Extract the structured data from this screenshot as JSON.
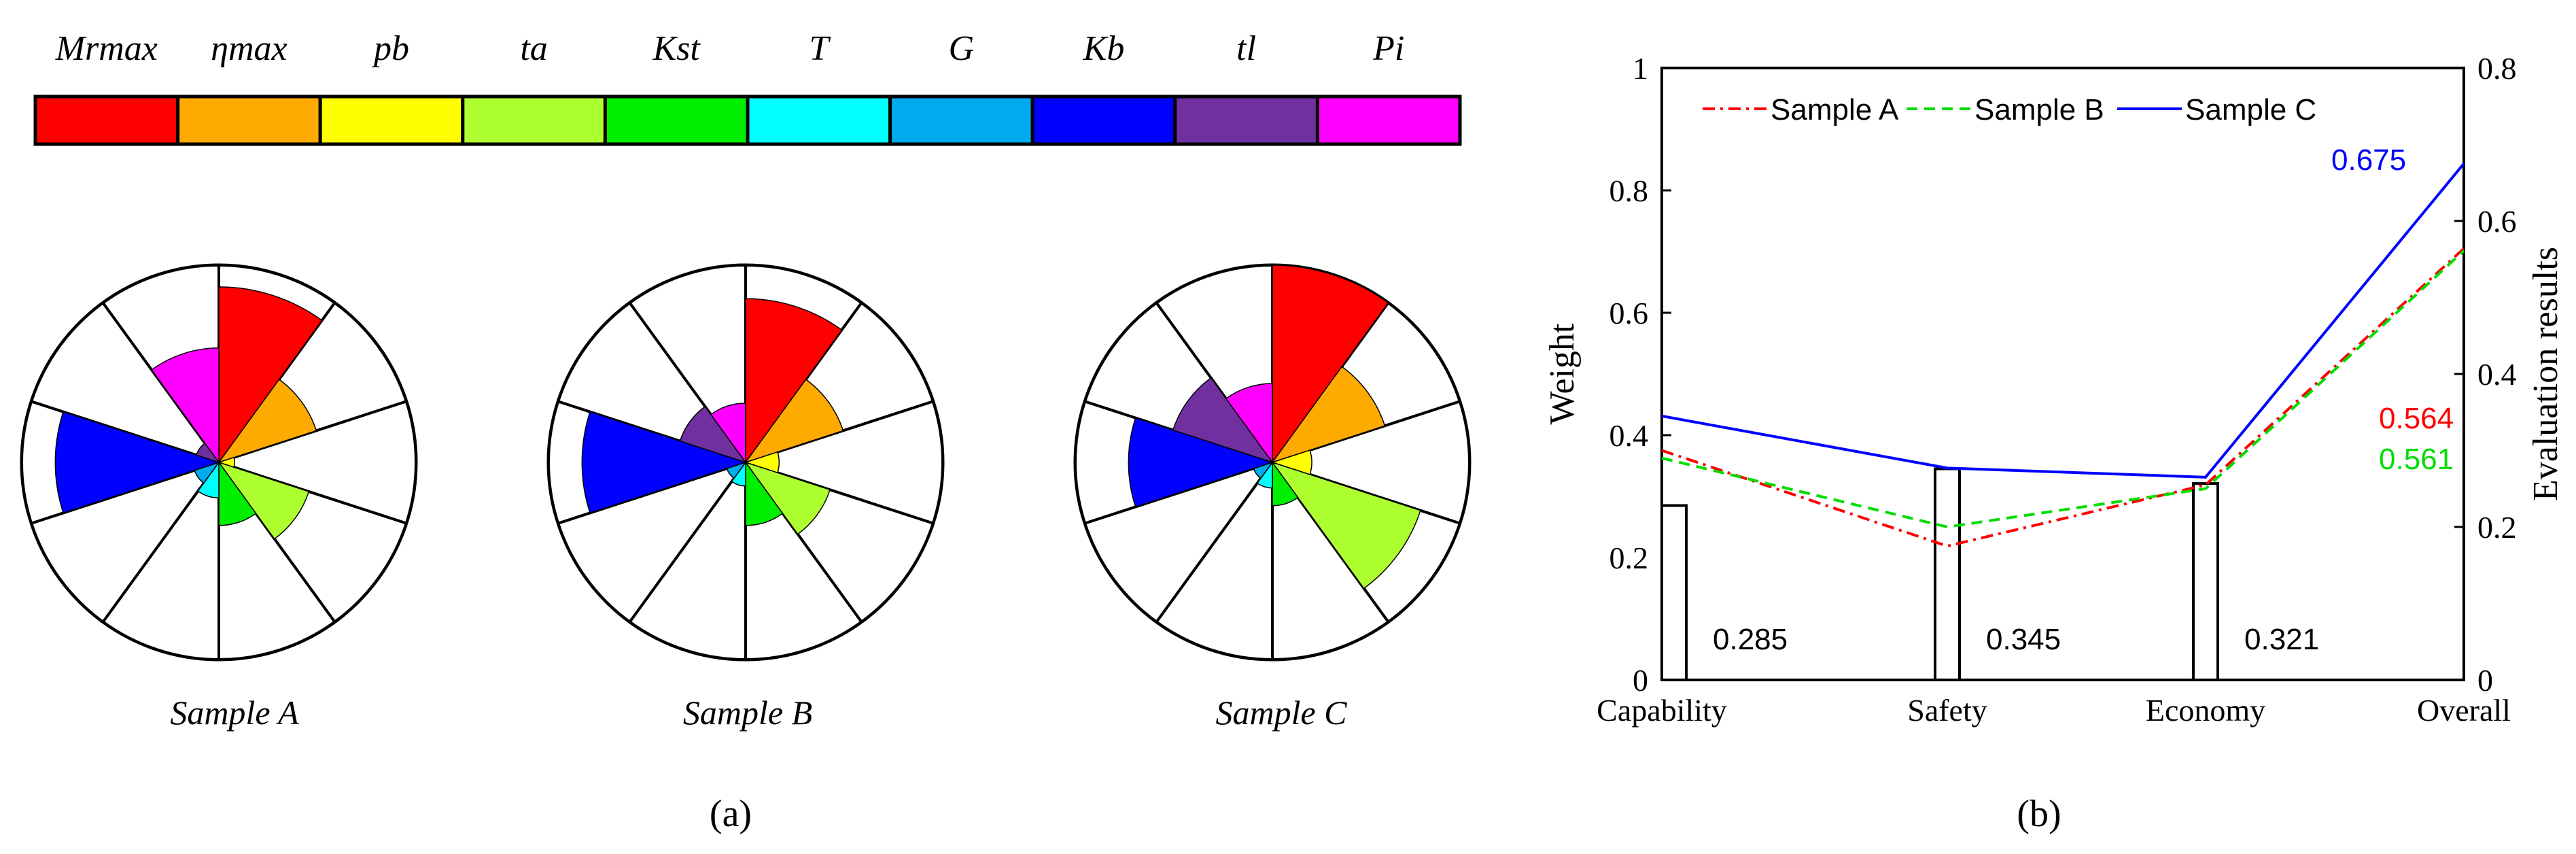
{
  "legend_bar": {
    "labels": [
      "Mrmax",
      "ηmax",
      "pb",
      "ta",
      "Kst",
      "T",
      "G",
      "Kb",
      "tl",
      "Pi"
    ],
    "colors": [
      "#ff0000",
      "#ffaa00",
      "#ffff00",
      "#adff2f",
      "#00ee00",
      "#00ffff",
      "#00aaee",
      "#0000ff",
      "#7030a0",
      "#ff00ff"
    ]
  },
  "chart_data": [
    {
      "type": "polar-area",
      "title": "Sample A",
      "categories": [
        "Mrmax",
        "ηmax",
        "pb",
        "ta",
        "Kst",
        "T",
        "G",
        "Kb",
        "tl",
        "Pi"
      ],
      "values": [
        0.89,
        0.52,
        0.08,
        0.48,
        0.32,
        0.18,
        0.13,
        0.83,
        0.12,
        0.58
      ]
    },
    {
      "type": "polar-area",
      "title": "Sample B",
      "categories": [
        "Mrmax",
        "ηmax",
        "pb",
        "ta",
        "Kst",
        "T",
        "G",
        "Kb",
        "tl",
        "Pi"
      ],
      "values": [
        0.83,
        0.52,
        0.17,
        0.45,
        0.32,
        0.12,
        0.1,
        0.83,
        0.35,
        0.3
      ]
    },
    {
      "type": "polar-area",
      "title": "Sample C",
      "categories": [
        "Mrmax",
        "ηmax",
        "pb",
        "ta",
        "Kst",
        "T",
        "G",
        "Kb",
        "tl",
        "Pi"
      ],
      "values": [
        1.0,
        0.6,
        0.2,
        0.79,
        0.22,
        0.13,
        0.1,
        0.73,
        0.53,
        0.4
      ]
    },
    {
      "type": "line+bar",
      "categories": [
        "Capability",
        "Safety",
        "Economy",
        "Overall"
      ],
      "ylabel": "Weight",
      "y2label": "Evaluation results",
      "ylim": [
        0,
        1
      ],
      "y2lim": [
        0,
        0.8
      ],
      "yticks": [
        "0",
        "0.2",
        "0.4",
        "0.6",
        "0.8",
        "1"
      ],
      "y2ticks": [
        "0",
        "0.2",
        "0.4",
        "0.6",
        "0.8"
      ],
      "weights": [
        0.285,
        0.345,
        0.321
      ],
      "weight_labels": [
        "0.285",
        "0.345",
        "0.321"
      ],
      "series": [
        {
          "name": "Sample A",
          "color": "#ff0000",
          "style": "dashdot",
          "values": [
            0.3,
            0.175,
            0.255,
            0.564
          ],
          "end_label": "0.564"
        },
        {
          "name": "Sample B",
          "color": "#00dd00",
          "style": "dashed",
          "values": [
            0.29,
            0.2,
            0.25,
            0.561
          ],
          "end_label": "0.561"
        },
        {
          "name": "Sample C",
          "color": "#0000ff",
          "style": "solid",
          "values": [
            0.345,
            0.277,
            0.265,
            0.675
          ],
          "end_label": "0.675"
        }
      ]
    }
  ],
  "captions": {
    "a": "(a)",
    "b": "(b)"
  }
}
